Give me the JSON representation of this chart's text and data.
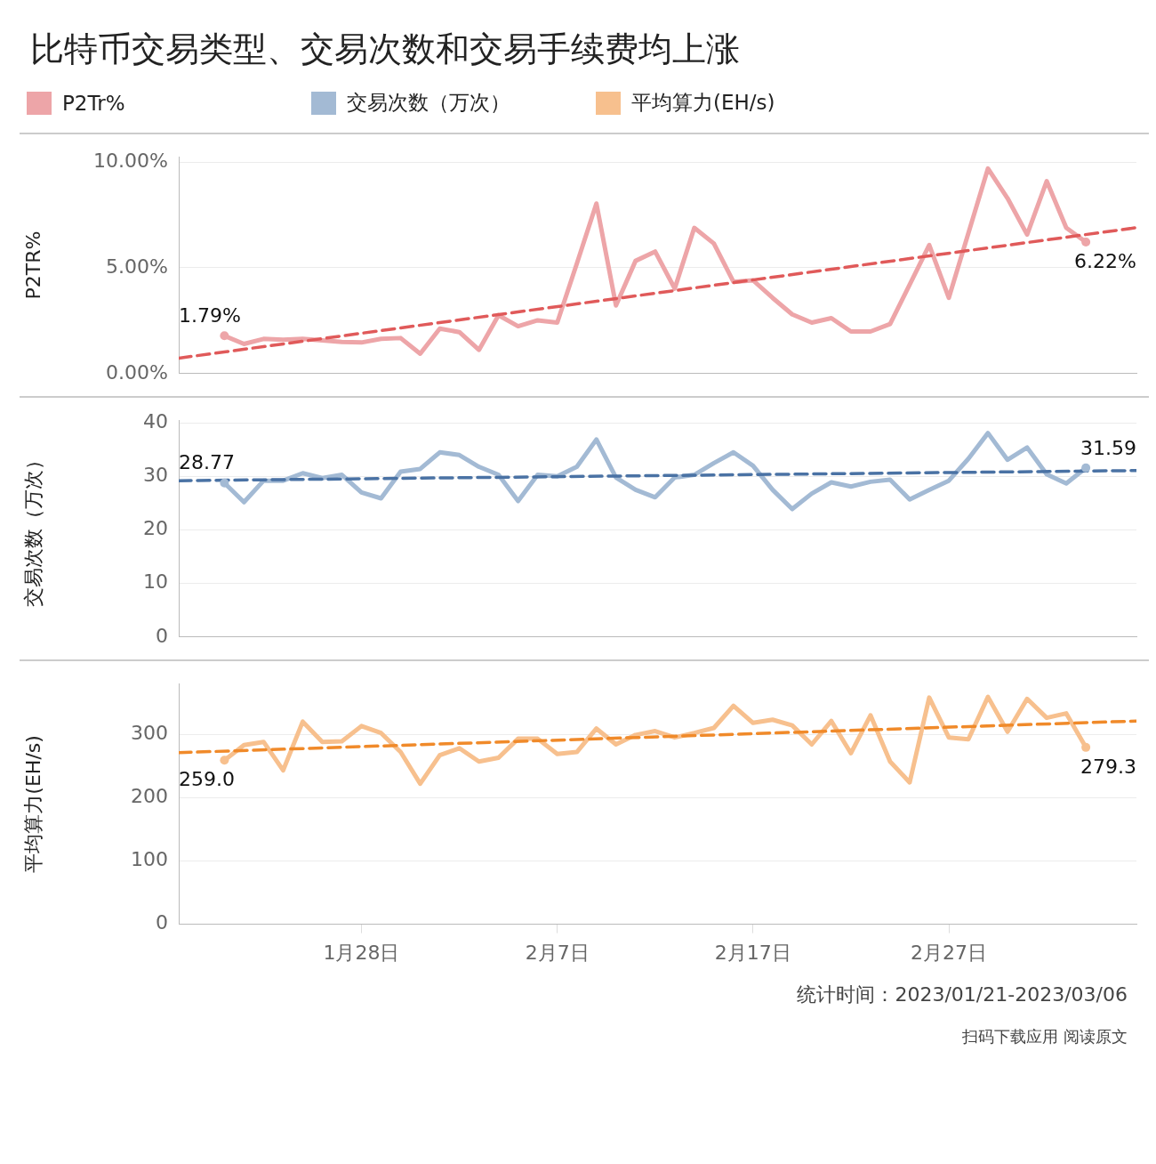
{
  "chart_data": [
    {
      "type": "line",
      "title": "比特币交易类型、交易次数和交易手续费均上涨",
      "ylabel": "P2TR%",
      "legend": "top",
      "grid": "y",
      "tick_labels": "y",
      "x": [
        "2023-01-21",
        "2023-01-22",
        "2023-01-23",
        "2023-01-24",
        "2023-01-25",
        "2023-01-26",
        "2023-01-27",
        "2023-01-28",
        "2023-01-29",
        "2023-01-30",
        "2023-01-31",
        "2023-02-01",
        "2023-02-02",
        "2023-02-03",
        "2023-02-04",
        "2023-02-05",
        "2023-02-06",
        "2023-02-07",
        "2023-02-08",
        "2023-02-09",
        "2023-02-10",
        "2023-02-11",
        "2023-02-12",
        "2023-02-13",
        "2023-02-14",
        "2023-02-15",
        "2023-02-16",
        "2023-02-17",
        "2023-02-18",
        "2023-02-19",
        "2023-02-20",
        "2023-02-21",
        "2023-02-22",
        "2023-02-23",
        "2023-02-24",
        "2023-02-25",
        "2023-02-26",
        "2023-02-27",
        "2023-02-28",
        "2023-03-01",
        "2023-03-02",
        "2023-03-03",
        "2023-03-04",
        "2023-03-05",
        "2023-03-06"
      ],
      "xlim": [
        "2023-01-18T16:00",
        "2023-03-08T14:00"
      ],
      "ylim": [
        0,
        10.25
      ],
      "yticks": [
        {
          "value": 0,
          "label": "0.00%"
        },
        {
          "value": 5,
          "label": "5.00%"
        },
        {
          "value": 10,
          "label": "10.00%"
        }
      ],
      "series": [
        {
          "name": "P2Tr%",
          "color": "#eda5a8",
          "values": [
            1.79,
            1.4,
            1.64,
            1.6,
            1.64,
            1.57,
            1.5,
            1.47,
            1.64,
            1.68,
            0.94,
            2.13,
            1.96,
            1.12,
            2.76,
            2.24,
            2.52,
            2.41,
            5.2,
            8.04,
            3.22,
            5.33,
            5.77,
            4.02,
            6.89,
            6.15,
            4.34,
            4.41,
            3.58,
            2.8,
            2.41,
            2.62,
            1.99,
            1.99,
            2.34,
            4.2,
            6.08,
            3.58,
            6.64,
            9.7,
            8.29,
            6.57,
            9.1,
            6.89,
            6.22
          ]
        },
        {
          "type": "line",
          "color": "#e05a5a",
          "line_style": "dashed",
          "x": [
            "2023-01-18T16:00",
            "2023-03-08T14:00"
          ],
          "values": [
            0.73,
            6.9
          ]
        }
      ],
      "annotations": [
        {
          "text": "1.79%",
          "x": "2023-01-21",
          "y": 1.79
        },
        {
          "text": "6.22%",
          "x": "2023-03-06",
          "y": 6.22
        }
      ]
    },
    {
      "type": "line",
      "ylabel": "交易次数（万次）",
      "legend": "top",
      "grid": "y",
      "tick_labels": "y",
      "x": [
        "2023-01-21",
        "2023-01-22",
        "2023-01-23",
        "2023-01-24",
        "2023-01-25",
        "2023-01-26",
        "2023-01-27",
        "2023-01-28",
        "2023-01-29",
        "2023-01-30",
        "2023-01-31",
        "2023-02-01",
        "2023-02-02",
        "2023-02-03",
        "2023-02-04",
        "2023-02-05",
        "2023-02-06",
        "2023-02-07",
        "2023-02-08",
        "2023-02-09",
        "2023-02-10",
        "2023-02-11",
        "2023-02-12",
        "2023-02-13",
        "2023-02-14",
        "2023-02-15",
        "2023-02-16",
        "2023-02-17",
        "2023-02-18",
        "2023-02-19",
        "2023-02-20",
        "2023-02-21",
        "2023-02-22",
        "2023-02-23",
        "2023-02-24",
        "2023-02-25",
        "2023-02-26",
        "2023-02-27",
        "2023-02-28",
        "2023-03-01",
        "2023-03-02",
        "2023-03-03",
        "2023-03-04",
        "2023-03-05",
        "2023-03-06"
      ],
      "xlim": [
        "2023-01-18T16:00",
        "2023-03-08T14:00"
      ],
      "ylim": [
        0,
        40.5
      ],
      "yticks": [
        0,
        10,
        20,
        30,
        40
      ],
      "series": [
        {
          "name": "交易次数（万次）",
          "color": "#a3bad4",
          "values": [
            28.77,
            25.2,
            29.2,
            29.2,
            30.6,
            29.7,
            30.3,
            27,
            25.9,
            30.9,
            31.4,
            34.5,
            34,
            31.8,
            30.3,
            25.4,
            30.3,
            30,
            31.8,
            36.9,
            29.8,
            27.5,
            26.1,
            29.8,
            30.3,
            32.5,
            34.5,
            32,
            27.5,
            23.9,
            26.8,
            28.9,
            28.1,
            29,
            29.4,
            25.7,
            27.5,
            29.2,
            33.3,
            38.1,
            33.1,
            35.4,
            30.4,
            28.7,
            31.59
          ]
        },
        {
          "type": "line",
          "color": "#4a72a4",
          "line_style": "dashed",
          "x": [
            "2023-01-18T16:00",
            "2023-03-08T14:00"
          ],
          "values": [
            29.2,
            31.1
          ]
        }
      ],
      "annotations": [
        {
          "text": "28.77",
          "x": "2023-01-21",
          "y": 28.77
        },
        {
          "text": "31.59",
          "x": "2023-03-06",
          "y": 31.59
        }
      ]
    },
    {
      "type": "line",
      "ylabel": "平均算力(EH/s)",
      "legend": "top",
      "grid": "y",
      "x": [
        "2023-01-21",
        "2023-01-22",
        "2023-01-23",
        "2023-01-24",
        "2023-01-25",
        "2023-01-26",
        "2023-01-27",
        "2023-01-28",
        "2023-01-29",
        "2023-01-30",
        "2023-01-31",
        "2023-02-01",
        "2023-02-02",
        "2023-02-03",
        "2023-02-04",
        "2023-02-05",
        "2023-02-06",
        "2023-02-07",
        "2023-02-08",
        "2023-02-09",
        "2023-02-10",
        "2023-02-11",
        "2023-02-12",
        "2023-02-13",
        "2023-02-14",
        "2023-02-15",
        "2023-02-16",
        "2023-02-17",
        "2023-02-18",
        "2023-02-19",
        "2023-02-20",
        "2023-02-21",
        "2023-02-22",
        "2023-02-23",
        "2023-02-24",
        "2023-02-25",
        "2023-02-26",
        "2023-02-27",
        "2023-02-28",
        "2023-03-01",
        "2023-03-02",
        "2023-03-03",
        "2023-03-04",
        "2023-03-05",
        "2023-03-06"
      ],
      "xlim": [
        "2023-01-18T16:00",
        "2023-03-08T14:00"
      ],
      "xticks": [
        {
          "value": "2023-01-28",
          "label": "1月28日"
        },
        {
          "value": "2023-02-07",
          "label": "2月7日"
        },
        {
          "value": "2023-02-17",
          "label": "2月17日"
        },
        {
          "value": "2023-02-27",
          "label": "2月27日"
        }
      ],
      "ylim": [
        0,
        380
      ],
      "yticks": [
        0,
        100,
        200,
        300
      ],
      "series": [
        {
          "name": "平均算力(EH/s)",
          "color": "#f7c08e",
          "values": [
            259.0,
            283,
            288,
            243,
            320,
            288,
            289,
            313,
            302,
            272,
            222,
            267,
            278,
            257,
            263,
            293,
            293,
            269,
            272,
            309,
            284,
            299,
            305,
            295,
            302,
            310,
            345,
            318,
            323,
            314,
            284,
            321,
            270,
            330,
            257,
            224,
            358,
            295,
            292,
            359,
            304,
            356,
            326,
            333,
            279.3
          ]
        },
        {
          "type": "line",
          "color": "#f08a2a",
          "line_style": "dashed",
          "x": [
            "2023-01-18T16:00",
            "2023-03-08T14:00"
          ],
          "values": [
            271,
            321
          ]
        }
      ],
      "annotations": [
        {
          "text": "259.0",
          "x": "2023-01-21",
          "y": 259.0
        },
        {
          "text": "279.3",
          "x": "2023-03-06",
          "y": 279.3
        },
        "统计时间：2023/01/21-2023/03/06",
        "扫码下载应用 阅读原文"
      ]
    }
  ]
}
